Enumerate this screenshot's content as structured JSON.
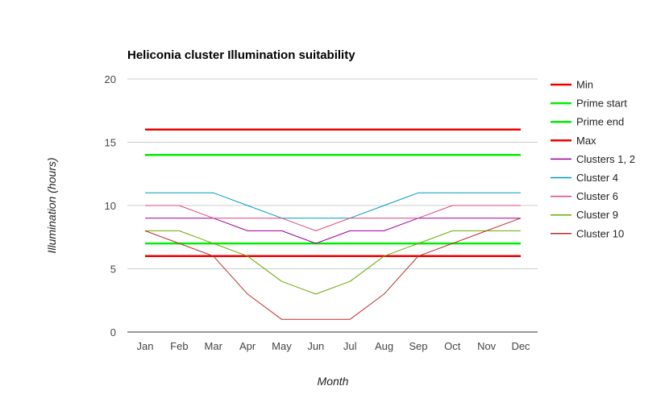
{
  "chart_data": {
    "type": "line",
    "title": "Heliconia cluster Illumination suitability",
    "xlabel": "Month",
    "ylabel": "Illumination (hours)",
    "categories": [
      "Jan",
      "Feb",
      "Mar",
      "Apr",
      "May",
      "Jun",
      "Jul",
      "Aug",
      "Sep",
      "Oct",
      "Nov",
      "Dec"
    ],
    "ylim": [
      0,
      20
    ],
    "yticks": [
      0,
      5,
      10,
      15,
      20
    ],
    "grid": true,
    "legend_position": "right",
    "series": [
      {
        "name": "Min",
        "color": "#ee0000",
        "weight": "heavy",
        "values": [
          6,
          6,
          6,
          6,
          6,
          6,
          6,
          6,
          6,
          6,
          6,
          6
        ]
      },
      {
        "name": "Prime start",
        "color": "#00ee00",
        "weight": "heavy",
        "values": [
          7,
          7,
          7,
          7,
          7,
          7,
          7,
          7,
          7,
          7,
          7,
          7
        ]
      },
      {
        "name": "Prime end",
        "color": "#00ee00",
        "weight": "heavy",
        "values": [
          14,
          14,
          14,
          14,
          14,
          14,
          14,
          14,
          14,
          14,
          14,
          14
        ]
      },
      {
        "name": "Max",
        "color": "#ee0000",
        "weight": "heavy",
        "values": [
          16,
          16,
          16,
          16,
          16,
          16,
          16,
          16,
          16,
          16,
          16,
          16
        ]
      },
      {
        "name": "Clusters 1, 2",
        "color": "#990099",
        "weight": "light",
        "values": [
          9,
          9,
          9,
          8,
          8,
          7,
          8,
          8,
          9,
          9,
          9,
          9
        ]
      },
      {
        "name": "Cluster 4",
        "color": "#0099c6",
        "weight": "light",
        "values": [
          11,
          11,
          11,
          10,
          9,
          9,
          9,
          10,
          11,
          11,
          11,
          11
        ]
      },
      {
        "name": "Cluster 6",
        "color": "#dd4477",
        "weight": "light",
        "values": [
          10,
          10,
          9,
          9,
          9,
          8,
          9,
          9,
          9,
          10,
          10,
          10
        ]
      },
      {
        "name": "Cluster 9",
        "color": "#66aa00",
        "weight": "light",
        "values": [
          8,
          8,
          7,
          6,
          4,
          3,
          4,
          6,
          7,
          8,
          8,
          8
        ]
      },
      {
        "name": "Cluster 10",
        "color": "#b82e2e",
        "weight": "light",
        "values": [
          8,
          7,
          6,
          3,
          1,
          1,
          1,
          3,
          6,
          7,
          8,
          9
        ]
      }
    ]
  }
}
